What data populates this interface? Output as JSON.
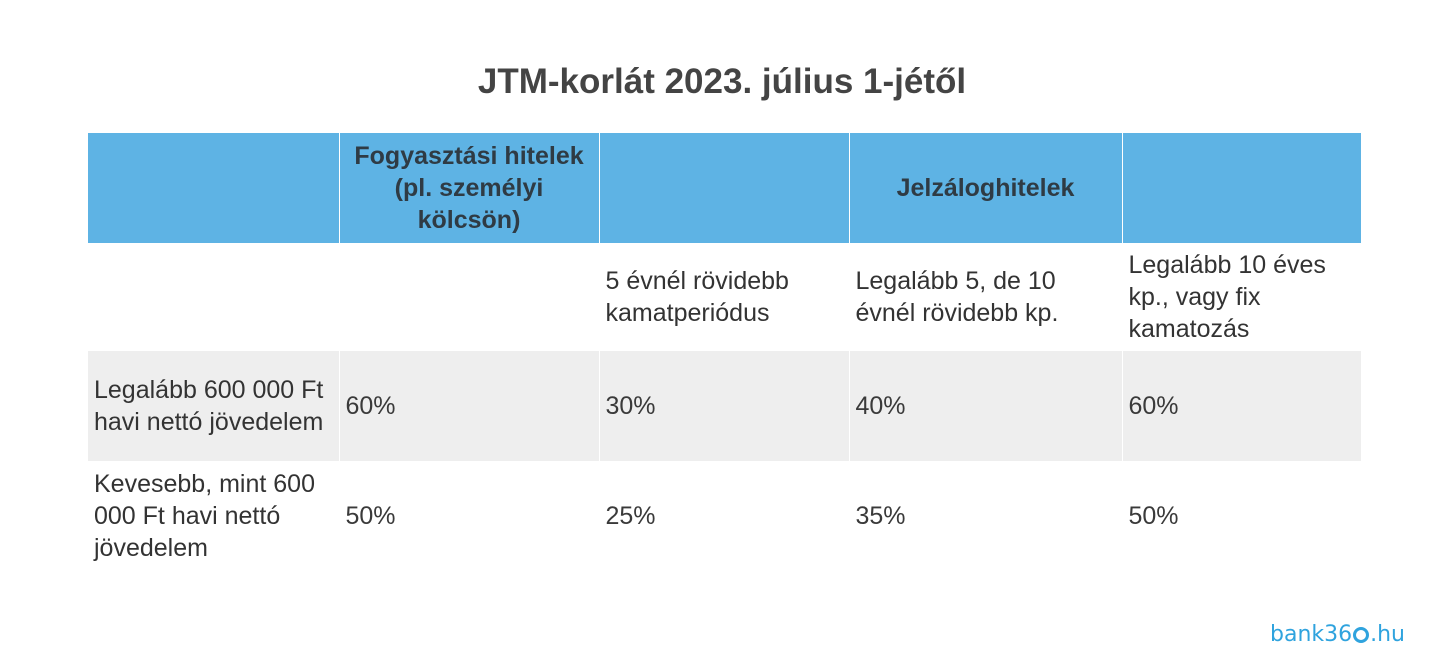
{
  "title": "JTM-korlát 2023. július 1-jétől",
  "table": {
    "header": [
      "",
      "Fogyasztási hitelek (pl. személyi kölcsön)",
      "",
      "Jelzáloghitelek",
      ""
    ],
    "subheader": [
      "",
      "",
      "5 évnél rövidebb kamatperiódus",
      "Legalább 5, de 10 évnél rövidebb kp.",
      "Legalább 10 éves kp., vagy fix kamatozás"
    ],
    "rows": [
      {
        "label": "Legalább 600 000 Ft havi nettó jövedelem",
        "values": [
          "60%",
          "30%",
          "40%",
          "60%"
        ]
      },
      {
        "label": "Kevesebb, mint 600 000 Ft havi nettó jövedelem",
        "values": [
          "50%",
          "25%",
          "35%",
          "50%"
        ]
      }
    ]
  },
  "logo": {
    "prefix": "bank36",
    "suffix": ".hu",
    "color": "#2fa3de"
  },
  "colors": {
    "header_bg": "#5eb3e4",
    "stripe_bg": "#eeeeee"
  }
}
